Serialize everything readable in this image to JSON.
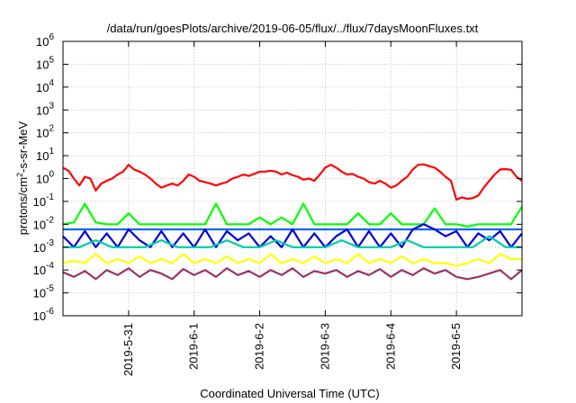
{
  "chart_data": {
    "type": "line",
    "title": "/data/run/goesPlots/archive/2019-06-05/flux/../flux/7daysMoonFluxes.txt",
    "xlabel": "Coordinated Universal Time (UTC)",
    "ylabel": {
      "base": "protons/cm",
      "sup": "2",
      "rest": "-s-sr-MeV"
    },
    "yscale": "log",
    "ylim": [
      1e-06,
      1000000.0
    ],
    "yticks": [
      {
        "exp": -6,
        "base": "10",
        "sup": "-6"
      },
      {
        "exp": -5,
        "base": "10",
        "sup": "-5"
      },
      {
        "exp": -4,
        "base": "10",
        "sup": "-4"
      },
      {
        "exp": -3,
        "base": "10",
        "sup": "-3"
      },
      {
        "exp": -2,
        "base": "10",
        "sup": "-2"
      },
      {
        "exp": -1,
        "base": "10",
        "sup": "-1"
      },
      {
        "exp": 0,
        "base": "10",
        "sup": "0"
      },
      {
        "exp": 1,
        "base": "10",
        "sup": "1"
      },
      {
        "exp": 2,
        "base": "10",
        "sup": "2"
      },
      {
        "exp": 3,
        "base": "10",
        "sup": "3"
      },
      {
        "exp": 4,
        "base": "10",
        "sup": "4"
      },
      {
        "exp": 5,
        "base": "10",
        "sup": "5"
      },
      {
        "exp": 6,
        "base": "10",
        "sup": "6"
      }
    ],
    "xlim": [
      "2019-05-30 00:00",
      "2019-06-06 00:00"
    ],
    "xticks": [
      "2019-5-31",
      "2019-6-1",
      "2019-6-2",
      "2019-6-3",
      "2019-6-4",
      "2019-6-5"
    ],
    "grid": true,
    "series": [
      {
        "color": "#ff0000",
        "x": [
          "2019-05-30 00:00",
          "2019-05-30 02:00",
          "2019-05-30 04:00",
          "2019-05-30 06:00",
          "2019-05-30 08:00",
          "2019-05-30 10:00",
          "2019-05-30 12:00",
          "2019-05-30 14:00",
          "2019-05-30 16:00",
          "2019-05-30 18:00",
          "2019-05-30 20:00",
          "2019-05-30 22:00",
          "2019-05-31 00:00",
          "2019-05-31 02:00",
          "2019-05-31 04:00",
          "2019-05-31 06:00",
          "2019-05-31 08:00",
          "2019-05-31 10:00",
          "2019-05-31 12:00",
          "2019-05-31 14:00",
          "2019-05-31 16:00",
          "2019-05-31 18:00",
          "2019-05-31 20:00",
          "2019-05-31 22:00",
          "2019-06-01 00:00",
          "2019-06-01 02:00",
          "2019-06-01 04:00",
          "2019-06-01 06:00",
          "2019-06-01 08:00",
          "2019-06-01 10:00",
          "2019-06-01 12:00",
          "2019-06-01 14:00",
          "2019-06-01 16:00",
          "2019-06-01 18:00",
          "2019-06-01 20:00",
          "2019-06-01 22:00",
          "2019-06-02 00:00",
          "2019-06-02 02:00",
          "2019-06-02 04:00",
          "2019-06-02 06:00",
          "2019-06-02 08:00",
          "2019-06-02 10:00",
          "2019-06-02 12:00",
          "2019-06-02 14:00",
          "2019-06-02 16:00",
          "2019-06-02 18:00",
          "2019-06-02 20:00",
          "2019-06-02 22:00",
          "2019-06-03 00:00",
          "2019-06-03 02:00",
          "2019-06-03 04:00",
          "2019-06-03 06:00",
          "2019-06-03 08:00",
          "2019-06-03 10:00",
          "2019-06-03 12:00",
          "2019-06-03 14:00",
          "2019-06-03 16:00",
          "2019-06-03 18:00",
          "2019-06-03 20:00",
          "2019-06-03 22:00",
          "2019-06-04 00:00",
          "2019-06-04 02:00",
          "2019-06-04 04:00",
          "2019-06-04 06:00",
          "2019-06-04 08:00",
          "2019-06-04 10:00",
          "2019-06-04 12:00",
          "2019-06-04 14:00",
          "2019-06-04 16:00",
          "2019-06-04 18:00",
          "2019-06-04 20:00",
          "2019-06-04 22:00",
          "2019-06-05 00:00",
          "2019-06-05 02:00",
          "2019-06-05 04:00",
          "2019-06-05 06:00",
          "2019-06-05 08:00",
          "2019-06-05 10:00",
          "2019-06-05 12:00",
          "2019-06-05 14:00",
          "2019-06-05 16:00",
          "2019-06-05 18:00",
          "2019-06-05 20:00",
          "2019-06-05 22:00",
          "2019-06-06 00:00"
        ],
        "values": [
          3,
          2.2,
          1,
          0.5,
          1.2,
          1,
          0.3,
          0.6,
          0.8,
          1,
          1.5,
          2,
          4,
          2.5,
          2,
          1.5,
          1,
          0.6,
          0.4,
          0.5,
          0.6,
          0.5,
          0.8,
          1.5,
          1.2,
          0.8,
          0.7,
          0.6,
          0.5,
          0.6,
          0.7,
          1,
          1.2,
          1.5,
          1.3,
          1.6,
          2,
          2,
          2.2,
          2,
          1.5,
          1.8,
          1.4,
          1.2,
          0.9,
          1,
          0.8,
          1.5,
          3,
          4,
          3,
          2,
          1.5,
          1.6,
          1.2,
          1,
          0.7,
          0.6,
          0.8,
          0.6,
          0.4,
          0.5,
          0.8,
          1.2,
          2.5,
          4,
          4.2,
          3.5,
          3,
          2,
          1.2,
          0.8,
          0.12,
          0.15,
          0.13,
          0.14,
          0.18,
          0.4,
          0.8,
          1.5,
          2.5,
          2.6,
          2.4,
          1.2,
          0.8
        ]
      },
      {
        "color": "#00ff00",
        "x": [
          "2019-05-30 00:00",
          "2019-05-30 04:00",
          "2019-05-30 08:00",
          "2019-05-30 12:00",
          "2019-05-30 16:00",
          "2019-05-30 20:00",
          "2019-05-31 00:00",
          "2019-05-31 04:00",
          "2019-05-31 08:00",
          "2019-05-31 12:00",
          "2019-05-31 16:00",
          "2019-05-31 20:00",
          "2019-06-01 00:00",
          "2019-06-01 04:00",
          "2019-06-01 08:00",
          "2019-06-01 12:00",
          "2019-06-01 16:00",
          "2019-06-01 20:00",
          "2019-06-02 00:00",
          "2019-06-02 04:00",
          "2019-06-02 08:00",
          "2019-06-02 12:00",
          "2019-06-02 16:00",
          "2019-06-02 20:00",
          "2019-06-03 00:00",
          "2019-06-03 04:00",
          "2019-06-03 08:00",
          "2019-06-03 12:00",
          "2019-06-03 16:00",
          "2019-06-03 20:00",
          "2019-06-04 00:00",
          "2019-06-04 04:00",
          "2019-06-04 08:00",
          "2019-06-04 12:00",
          "2019-06-04 16:00",
          "2019-06-04 20:00",
          "2019-06-05 00:00",
          "2019-06-05 04:00",
          "2019-06-05 08:00",
          "2019-06-05 12:00",
          "2019-06-05 16:00",
          "2019-06-05 20:00",
          "2019-06-06 00:00"
        ],
        "values": [
          0.01,
          0.012,
          0.08,
          0.012,
          0.01,
          0.01,
          0.03,
          0.01,
          0.01,
          0.01,
          0.01,
          0.01,
          0.01,
          0.01,
          0.08,
          0.01,
          0.01,
          0.01,
          0.02,
          0.01,
          0.02,
          0.01,
          0.08,
          0.01,
          0.01,
          0.01,
          0.01,
          0.03,
          0.01,
          0.01,
          0.03,
          0.01,
          0.01,
          0.01,
          0.05,
          0.01,
          0.01,
          0.008,
          0.01,
          0.01,
          0.01,
          0.01,
          0.06
        ]
      },
      {
        "color": "#0066ff",
        "x": [
          "2019-05-30 00:00",
          "2019-05-30 12:00",
          "2019-05-31 00:00",
          "2019-05-31 12:00",
          "2019-06-01 00:00",
          "2019-06-01 12:00",
          "2019-06-02 00:00",
          "2019-06-02 12:00",
          "2019-06-03 00:00",
          "2019-06-03 12:00",
          "2019-06-04 00:00",
          "2019-06-04 12:00",
          "2019-06-05 00:00",
          "2019-06-05 12:00",
          "2019-06-06 00:00"
        ],
        "values": [
          0.006,
          0.006,
          0.006,
          0.006,
          0.006,
          0.006,
          0.006,
          0.006,
          0.006,
          0.006,
          0.006,
          0.006,
          0.006,
          0.006,
          0.006
        ]
      },
      {
        "color": "#0000dd",
        "x": [
          "2019-05-30 00:00",
          "2019-05-30 04:00",
          "2019-05-30 08:00",
          "2019-05-30 12:00",
          "2019-05-30 16:00",
          "2019-05-30 20:00",
          "2019-05-31 00:00",
          "2019-05-31 04:00",
          "2019-05-31 08:00",
          "2019-05-31 12:00",
          "2019-05-31 16:00",
          "2019-05-31 20:00",
          "2019-06-01 00:00",
          "2019-06-01 04:00",
          "2019-06-01 08:00",
          "2019-06-01 12:00",
          "2019-06-01 16:00",
          "2019-06-01 20:00",
          "2019-06-02 00:00",
          "2019-06-02 04:00",
          "2019-06-02 08:00",
          "2019-06-02 12:00",
          "2019-06-02 16:00",
          "2019-06-02 20:00",
          "2019-06-03 00:00",
          "2019-06-03 04:00",
          "2019-06-03 08:00",
          "2019-06-03 12:00",
          "2019-06-03 16:00",
          "2019-06-03 20:00",
          "2019-06-04 00:00",
          "2019-06-04 04:00",
          "2019-06-04 08:00",
          "2019-06-04 12:00",
          "2019-06-04 16:00",
          "2019-06-04 20:00",
          "2019-06-05 00:00",
          "2019-06-05 04:00",
          "2019-06-05 08:00",
          "2019-06-05 12:00",
          "2019-06-05 16:00",
          "2019-06-05 20:00",
          "2019-06-06 00:00"
        ],
        "values": [
          0.003,
          0.001,
          0.005,
          0.001,
          0.004,
          0.001,
          0.006,
          0.002,
          0.001,
          0.005,
          0.001,
          0.004,
          0.001,
          0.006,
          0.001,
          0.005,
          0.002,
          0.004,
          0.001,
          0.003,
          0.001,
          0.006,
          0.001,
          0.004,
          0.001,
          0.003,
          0.006,
          0.001,
          0.005,
          0.001,
          0.004,
          0.001,
          0.006,
          0.01,
          0.006,
          0.003,
          0.005,
          0.001,
          0.004,
          0.002,
          0.005,
          0.001,
          0.004
        ]
      },
      {
        "color": "#00ccaa",
        "x": [
          "2019-05-30 00:00",
          "2019-05-30 06:00",
          "2019-05-30 12:00",
          "2019-05-30 18:00",
          "2019-05-31 00:00",
          "2019-05-31 06:00",
          "2019-05-31 12:00",
          "2019-05-31 18:00",
          "2019-06-01 00:00",
          "2019-06-01 06:00",
          "2019-06-01 12:00",
          "2019-06-01 18:00",
          "2019-06-02 00:00",
          "2019-06-02 06:00",
          "2019-06-02 12:00",
          "2019-06-02 18:00",
          "2019-06-03 00:00",
          "2019-06-03 06:00",
          "2019-06-03 12:00",
          "2019-06-03 18:00",
          "2019-06-04 00:00",
          "2019-06-04 06:00",
          "2019-06-04 12:00",
          "2019-06-04 18:00",
          "2019-06-05 00:00",
          "2019-06-05 06:00",
          "2019-06-05 12:00",
          "2019-06-05 18:00",
          "2019-06-06 00:00"
        ],
        "values": [
          0.001,
          0.001,
          0.002,
          0.001,
          0.001,
          0.001,
          0.002,
          0.001,
          0.001,
          0.001,
          0.002,
          0.001,
          0.001,
          0.002,
          0.001,
          0.001,
          0.001,
          0.002,
          0.001,
          0.001,
          0.001,
          0.002,
          0.001,
          0.001,
          0.001,
          0.001,
          0.003,
          0.001,
          0.001
        ]
      },
      {
        "color": "#ffff00",
        "x": [
          "2019-05-30 00:00",
          "2019-05-30 04:00",
          "2019-05-30 08:00",
          "2019-05-30 12:00",
          "2019-05-30 16:00",
          "2019-05-30 20:00",
          "2019-05-31 00:00",
          "2019-05-31 04:00",
          "2019-05-31 08:00",
          "2019-05-31 12:00",
          "2019-05-31 16:00",
          "2019-05-31 20:00",
          "2019-06-01 00:00",
          "2019-06-01 04:00",
          "2019-06-01 08:00",
          "2019-06-01 12:00",
          "2019-06-01 16:00",
          "2019-06-01 20:00",
          "2019-06-02 00:00",
          "2019-06-02 04:00",
          "2019-06-02 08:00",
          "2019-06-02 12:00",
          "2019-06-02 16:00",
          "2019-06-02 20:00",
          "2019-06-03 00:00",
          "2019-06-03 04:00",
          "2019-06-03 08:00",
          "2019-06-03 12:00",
          "2019-06-03 16:00",
          "2019-06-03 20:00",
          "2019-06-04 00:00",
          "2019-06-04 04:00",
          "2019-06-04 08:00",
          "2019-06-04 12:00",
          "2019-06-04 16:00",
          "2019-06-04 20:00",
          "2019-06-05 00:00",
          "2019-06-05 04:00",
          "2019-06-05 08:00",
          "2019-06-05 12:00",
          "2019-06-05 16:00",
          "2019-06-05 20:00",
          "2019-06-06 00:00"
        ],
        "values": [
          0.0002,
          0.00025,
          0.0002,
          0.0005,
          0.0002,
          0.0003,
          0.0002,
          0.0004,
          0.0002,
          0.0003,
          0.0002,
          0.0005,
          0.0002,
          0.0003,
          0.0002,
          0.0004,
          0.0002,
          0.0003,
          0.0002,
          0.0005,
          0.0002,
          0.0003,
          0.0002,
          0.0004,
          0.0002,
          0.0003,
          0.0002,
          0.0005,
          0.0002,
          0.0003,
          0.0002,
          0.0004,
          0.0002,
          0.0003,
          0.0002,
          0.0002,
          0.00015,
          0.0002,
          0.0003,
          0.0002,
          0.0005,
          0.0003,
          0.0003
        ]
      },
      {
        "color": "#993366",
        "x": [
          "2019-05-30 00:00",
          "2019-05-30 04:00",
          "2019-05-30 08:00",
          "2019-05-30 12:00",
          "2019-05-30 16:00",
          "2019-05-30 20:00",
          "2019-05-31 00:00",
          "2019-05-31 04:00",
          "2019-05-31 08:00",
          "2019-05-31 12:00",
          "2019-05-31 16:00",
          "2019-05-31 20:00",
          "2019-06-01 00:00",
          "2019-06-01 04:00",
          "2019-06-01 08:00",
          "2019-06-01 12:00",
          "2019-06-01 16:00",
          "2019-06-01 20:00",
          "2019-06-02 00:00",
          "2019-06-02 04:00",
          "2019-06-02 08:00",
          "2019-06-02 12:00",
          "2019-06-02 16:00",
          "2019-06-02 20:00",
          "2019-06-03 00:00",
          "2019-06-03 04:00",
          "2019-06-03 08:00",
          "2019-06-03 12:00",
          "2019-06-03 16:00",
          "2019-06-03 20:00",
          "2019-06-04 00:00",
          "2019-06-04 04:00",
          "2019-06-04 08:00",
          "2019-06-04 12:00",
          "2019-06-04 16:00",
          "2019-06-04 20:00",
          "2019-06-05 00:00",
          "2019-06-05 04:00",
          "2019-06-05 08:00",
          "2019-06-05 12:00",
          "2019-06-05 16:00",
          "2019-06-05 20:00",
          "2019-06-06 00:00"
        ],
        "values": [
          8e-05,
          5e-05,
          9e-05,
          4e-05,
          0.0001,
          6e-05,
          0.00012,
          5e-05,
          0.0001,
          7e-05,
          4e-05,
          0.00011,
          6e-05,
          0.0001,
          5e-05,
          0.00012,
          6e-05,
          9e-05,
          5e-05,
          0.0001,
          6e-05,
          0.00012,
          5e-05,
          9e-05,
          7e-05,
          0.0001,
          5e-05,
          9e-05,
          6e-05,
          0.00011,
          5e-05,
          0.0001,
          6e-05,
          0.00012,
          7e-05,
          0.0001,
          5e-05,
          4e-05,
          5e-05,
          7e-05,
          0.0001,
          4e-05,
          0.0001
        ]
      }
    ]
  }
}
